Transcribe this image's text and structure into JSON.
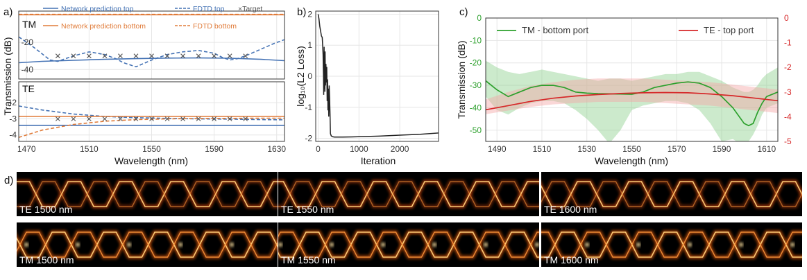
{
  "panel_labels": {
    "a": "a)",
    "b": "b)",
    "c": "c)",
    "d": "d)"
  },
  "colors": {
    "blue": "#4472b4",
    "orange": "#e07b39",
    "target": "#555555",
    "green": "#2ca02c",
    "green_band": "#8fd18f",
    "red": "#d62728",
    "red_band": "#f4a6a6",
    "black": "#222222"
  },
  "chart_data": [
    {
      "id": "a-tm",
      "type": "line",
      "panel_label": "TM",
      "xlabel": "Wavelength (nm)",
      "ylabel": "Transmission (dB)",
      "xlim": [
        1465,
        1635
      ],
      "ylim": [
        -47,
        3
      ],
      "xticks": [
        1470,
        1510,
        1550,
        1590,
        1630
      ],
      "yticks": [
        -20,
        -40
      ],
      "legend": [
        {
          "label": "Network prediction top",
          "style": "solid",
          "color": "blue"
        },
        {
          "label": "FDTD top",
          "style": "dashed",
          "color": "blue"
        },
        {
          "label": "×Target",
          "style": "marker",
          "color": "target"
        },
        {
          "label": "Network prediction bottom",
          "style": "solid",
          "color": "orange"
        },
        {
          "label": "FDTD bottom",
          "style": "dashed",
          "color": "orange"
        }
      ],
      "series": [
        {
          "name": "Network prediction top",
          "color": "blue",
          "dash": false,
          "x": [
            1465,
            1480,
            1500,
            1520,
            1540,
            1560,
            1580,
            1600,
            1620,
            1635
          ],
          "y": [
            -35,
            -34,
            -33.2,
            -32.5,
            -32.0,
            -31.6,
            -31.5,
            -31.7,
            -32.5,
            -33.5
          ]
        },
        {
          "name": "FDTD top",
          "color": "blue",
          "dash": true,
          "x": [
            1465,
            1475,
            1485,
            1490,
            1500,
            1510,
            1520,
            1527,
            1532,
            1540,
            1550,
            1560,
            1570,
            1580,
            1590,
            1595,
            1600,
            1605,
            1612,
            1620,
            1628,
            1635
          ],
          "y": [
            -16,
            -24,
            -33,
            -34,
            -30,
            -27,
            -29,
            -32,
            -35,
            -38,
            -33,
            -29,
            -27,
            -26,
            -28,
            -31,
            -33,
            -32,
            -29,
            -25,
            -21,
            -18
          ]
        },
        {
          "name": "Network prediction bottom",
          "color": "orange",
          "dash": false,
          "x": [
            1465,
            1635
          ],
          "y": [
            0.3,
            0.3
          ]
        },
        {
          "name": "FDTD bottom",
          "color": "orange",
          "dash": true,
          "x": [
            1465,
            1635
          ],
          "y": [
            0.6,
            0.6
          ]
        },
        {
          "name": "Target",
          "color": "target",
          "marker": "x",
          "x": [
            1490,
            1500,
            1510,
            1520,
            1530,
            1540,
            1550,
            1560,
            1570,
            1580,
            1590,
            1600,
            1610
          ],
          "y": [
            -30,
            -30,
            -30,
            -30,
            -30,
            -30,
            -30,
            -30,
            -30,
            -30,
            -30,
            -30,
            -30
          ]
        }
      ]
    },
    {
      "id": "a-te",
      "type": "line",
      "panel_label": "TE",
      "xlim": [
        1465,
        1635
      ],
      "ylim": [
        -4.4,
        -0.7
      ],
      "yticks": [
        -2,
        -3,
        -4
      ],
      "series": [
        {
          "name": "Network prediction top",
          "color": "blue",
          "dash": false,
          "x": [
            1465,
            1635
          ],
          "y": [
            -3.4,
            -3.4
          ]
        },
        {
          "name": "FDTD top",
          "color": "blue",
          "dash": true,
          "x": [
            1465,
            1480,
            1500,
            1520,
            1540,
            1560,
            1580,
            1600,
            1620,
            1635
          ],
          "y": [
            -2.2,
            -2.45,
            -2.7,
            -2.85,
            -2.93,
            -2.97,
            -3.0,
            -3.02,
            -3.05,
            -3.06
          ]
        },
        {
          "name": "Network prediction bottom",
          "color": "orange",
          "dash": false,
          "x": [
            1465,
            1635
          ],
          "y": [
            -2.85,
            -2.85
          ]
        },
        {
          "name": "FDTD bottom",
          "color": "orange",
          "dash": true,
          "x": [
            1465,
            1480,
            1500,
            1520,
            1540,
            1560,
            1580,
            1600,
            1620,
            1635
          ],
          "y": [
            -4.15,
            -3.7,
            -3.35,
            -3.15,
            -3.05,
            -3.0,
            -2.98,
            -2.97,
            -2.96,
            -2.96
          ]
        },
        {
          "name": "Target",
          "color": "target",
          "marker": "x",
          "x": [
            1490,
            1500,
            1510,
            1520,
            1530,
            1540,
            1550,
            1560,
            1570,
            1580,
            1590,
            1600,
            1610
          ],
          "y": [
            -3,
            -3,
            -3,
            -3,
            -3,
            -3,
            -3,
            -3,
            -3,
            -3,
            -3,
            -3,
            -3
          ]
        }
      ]
    },
    {
      "id": "b",
      "type": "line",
      "xlabel": "Iteration",
      "ylabel": "log₁₀(L2 Loss)",
      "xlim": [
        -60,
        2950
      ],
      "ylim": [
        -2.1,
        2.1
      ],
      "xticks": [
        0,
        1000,
        2000
      ],
      "yticks": [
        2,
        1,
        0,
        -1,
        -2
      ],
      "series": [
        {
          "name": "loss",
          "color": "black",
          "x": [
            0,
            20,
            40,
            60,
            80,
            100,
            110,
            120,
            125,
            130,
            135,
            140,
            145,
            150,
            155,
            160,
            165,
            170,
            175,
            180,
            190,
            200,
            210,
            220,
            230,
            240,
            250,
            260,
            270,
            280,
            290,
            300,
            320,
            350,
            400,
            600,
            1000,
            1500,
            2000,
            2500,
            2950
          ],
          "y": [
            2.0,
            1.85,
            1.6,
            1.45,
            1.3,
            1.25,
            1.0,
            0.7,
            0.3,
            0.0,
            -0.6,
            0.2,
            0.95,
            -0.4,
            0.6,
            0.1,
            -0.5,
            0.8,
            0.2,
            -0.3,
            0.4,
            -0.2,
            0.3,
            -0.8,
            -0.1,
            -1.1,
            -0.4,
            -1.3,
            -0.3,
            -0.7,
            -1.2,
            -1.85,
            -1.92,
            -1.95,
            -1.96,
            -1.96,
            -1.95,
            -1.93,
            -1.9,
            -1.87,
            -1.83
          ]
        }
      ]
    },
    {
      "id": "c",
      "type": "area",
      "xlabel": "Wavelength (nm)",
      "ylabel": "Transmission (dB)",
      "xlim": [
        1485,
        1615
      ],
      "ylim_left": [
        -55,
        0
      ],
      "yticks_left": [
        0,
        -10,
        -20,
        -30,
        -40,
        -50
      ],
      "ylim_right": [
        -5,
        0
      ],
      "yticks_right": [
        0,
        -1,
        -2,
        -3,
        -4,
        -5
      ],
      "xticks": [
        1490,
        1510,
        1530,
        1550,
        1570,
        1590,
        1610
      ],
      "legend": [
        {
          "label": "TM - bottom port",
          "color": "green"
        },
        {
          "label": "TE - top port",
          "color": "red"
        }
      ],
      "series": [
        {
          "name": "TM - bottom port",
          "color": "green",
          "axis": "left",
          "x": [
            1485,
            1490,
            1495,
            1500,
            1505,
            1510,
            1515,
            1520,
            1525,
            1530,
            1535,
            1540,
            1545,
            1550,
            1555,
            1560,
            1565,
            1570,
            1575,
            1580,
            1585,
            1590,
            1595,
            1600,
            1602,
            1604,
            1606,
            1608,
            1610,
            1615
          ],
          "y": [
            -28,
            -32,
            -35,
            -33,
            -31,
            -30,
            -30,
            -31,
            -33,
            -33.5,
            -33.7,
            -33.8,
            -33.9,
            -34,
            -33,
            -31,
            -30,
            -29,
            -28.5,
            -29,
            -31,
            -35,
            -40,
            -47,
            -48,
            -47,
            -42,
            -38,
            -35,
            -33
          ],
          "band_upper": [
            -19,
            -22,
            -24,
            -25,
            -24,
            -23,
            -24,
            -25,
            -26,
            -27,
            -28,
            -27,
            -27,
            -28,
            -27,
            -26,
            -25,
            -25,
            -24,
            -24,
            -26,
            -28,
            -31,
            -33,
            -33,
            -32,
            -30,
            -27,
            -25,
            -22
          ],
          "band_lower": [
            -35,
            -41,
            -43,
            -40,
            -38,
            -37,
            -37,
            -38,
            -41,
            -45,
            -50,
            -56,
            -50,
            -41,
            -39,
            -38,
            -37,
            -37,
            -38,
            -41,
            -47,
            -55,
            -54,
            -57,
            -55,
            -52,
            -48,
            -43,
            -40,
            -38
          ]
        },
        {
          "name": "TE - top port",
          "color": "red",
          "axis": "right",
          "x": [
            1485,
            1495,
            1505,
            1515,
            1525,
            1535,
            1545,
            1555,
            1565,
            1575,
            1585,
            1595,
            1605,
            1615
          ],
          "y": [
            -3.72,
            -3.55,
            -3.38,
            -3.25,
            -3.16,
            -3.1,
            -3.06,
            -3.03,
            -3.02,
            -3.03,
            -3.08,
            -3.15,
            -3.25,
            -3.35
          ],
          "band_upper": [
            -3.3,
            -3.0,
            -2.75,
            -2.6,
            -2.5,
            -2.45,
            -2.45,
            -2.45,
            -2.5,
            -2.55,
            -2.6,
            -2.7,
            -2.8,
            -2.9
          ],
          "band_lower": [
            -3.9,
            -3.75,
            -3.6,
            -3.5,
            -3.45,
            -3.4,
            -3.4,
            -3.4,
            -3.45,
            -3.5,
            -3.55,
            -3.65,
            -3.75,
            -3.85
          ]
        }
      ]
    },
    {
      "id": "d",
      "type": "heatmap",
      "rows": [
        {
          "mode": "TE",
          "tiles": [
            "TE 1500 nm",
            "TE 1550 nm",
            "TE 1600 nm"
          ]
        },
        {
          "mode": "TM",
          "tiles": [
            "TM 1500 nm",
            "TM 1550 nm",
            "TM 1600 nm"
          ]
        }
      ]
    }
  ]
}
